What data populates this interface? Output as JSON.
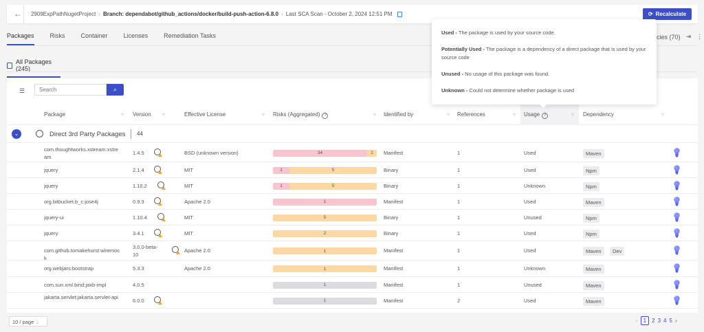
{
  "header": {
    "project": "2909ExpPathNugetProject",
    "branch": "Branch: dependabot/github_actions/docker/build-push-action-6.8.0",
    "last_scan": "Last SCA Scan - October 2, 2024 12:51 PM",
    "recalculate_label": "Recalculate"
  },
  "tabs": [
    "Packages",
    "Risks",
    "Container",
    "Licenses",
    "Remediation Tasks"
  ],
  "right_info": "cies (70)",
  "subtab": "All Packages (245)",
  "search": {
    "placeholder": "Search"
  },
  "columns": {
    "package": "Package",
    "version": "Version",
    "license": "Effective License",
    "risks": "Risks (Aggregated)",
    "identified_by": "Identified by",
    "references": "References",
    "usage": "Usage",
    "dependency": "Dependency"
  },
  "group": {
    "name": "Direct 3rd Party Packages",
    "count": "44"
  },
  "risk_colors": {
    "high": "#f8c5cf",
    "medium": "#fdd8a4",
    "low": "#dcdce0"
  },
  "rows": [
    {
      "package": "com.thoughtworks.xstream:xstream",
      "version": "1.4.5",
      "outdated": true,
      "license": "BSD (unknown version)",
      "risks": [
        {
          "level": "high",
          "count": 34
        },
        {
          "level": "medium",
          "count": 2
        }
      ],
      "identified_by": "Manifest",
      "references": "1",
      "usage": "Used",
      "dependency": [
        "Maven"
      ]
    },
    {
      "package": "jquery",
      "version": "2.1.4",
      "outdated": true,
      "license": "MIT",
      "risks": [
        {
          "level": "high",
          "count": 1
        },
        {
          "level": "medium",
          "count": 5
        }
      ],
      "identified_by": "Binary",
      "references": "1",
      "usage": "Used",
      "dependency": [
        "Npm"
      ]
    },
    {
      "package": "jquery",
      "version": "1.10.2",
      "outdated": true,
      "license": "MIT",
      "risks": [
        {
          "level": "high",
          "count": 1
        },
        {
          "level": "medium",
          "count": 5
        }
      ],
      "identified_by": "Binary",
      "references": "1",
      "usage": "Unknown",
      "dependency": [
        "Npm"
      ]
    },
    {
      "package": "org.bitbucket.b_c:jose4j",
      "version": "0.9.3",
      "outdated": true,
      "license": "Apache 2.0",
      "risks": [
        {
          "level": "high",
          "count": 1
        }
      ],
      "identified_by": "Manifest",
      "references": "1",
      "usage": "Used",
      "dependency": [
        "Maven"
      ]
    },
    {
      "package": "jquery-ui",
      "version": "1.10.4",
      "outdated": true,
      "license": "MIT",
      "risks": [
        {
          "level": "medium",
          "count": 5
        }
      ],
      "identified_by": "Binary",
      "references": "1",
      "usage": "Unused",
      "dependency": [
        "Npm"
      ]
    },
    {
      "package": "jquery",
      "version": "3.4.1",
      "outdated": true,
      "license": "MIT",
      "risks": [
        {
          "level": "medium",
          "count": 2
        }
      ],
      "identified_by": "Binary",
      "references": "1",
      "usage": "Used",
      "dependency": [
        "Npm"
      ]
    },
    {
      "package": "com.github.tomakehurst:wiremock",
      "version": "3.0.0-beta-10",
      "outdated": true,
      "license": "Apache 2.0",
      "risks": [
        {
          "level": "medium",
          "count": 1
        }
      ],
      "identified_by": "Manifest",
      "references": "1",
      "usage": "Used",
      "dependency": [
        "Maven",
        "Dev"
      ]
    },
    {
      "package": "org.webjars:bootstrap",
      "version": "5.3.3",
      "outdated": false,
      "license": "Apache 2.0",
      "risks": [
        {
          "level": "medium",
          "count": 1
        }
      ],
      "identified_by": "Manifest",
      "references": "1",
      "usage": "Unknown",
      "dependency": [
        "Maven"
      ]
    },
    {
      "package": "com.sun.xml.bind:jaxb-impl",
      "version": "4.0.5",
      "outdated": false,
      "license": "",
      "risks": [
        {
          "level": "low",
          "count": 1
        }
      ],
      "identified_by": "Manifest",
      "references": "1",
      "usage": "Unused",
      "dependency": [
        "Maven"
      ]
    },
    {
      "package": "jakarta.servlet:jakarta.servlet-api",
      "version": "6.0.0",
      "outdated": true,
      "license": "",
      "risks": [
        {
          "level": "low",
          "count": 1
        }
      ],
      "identified_by": "Manifest",
      "references": "2",
      "usage": "Used",
      "dependency": [
        "Maven"
      ]
    }
  ],
  "footer": {
    "page_size": "10 / page",
    "pages": [
      "1",
      "2",
      "3",
      "4",
      "5"
    ],
    "current_page": "1"
  },
  "tooltip": [
    {
      "term": "Used -",
      "desc": " The package is used by your source code."
    },
    {
      "term": "Potentially Used -",
      "desc": " The package is a dependency of a direct package that is used by your source code"
    },
    {
      "term": "Unused -",
      "desc": " No usage of this package was found."
    },
    {
      "term": "Unknown -",
      "desc": " Could not determine whether package is used"
    }
  ]
}
